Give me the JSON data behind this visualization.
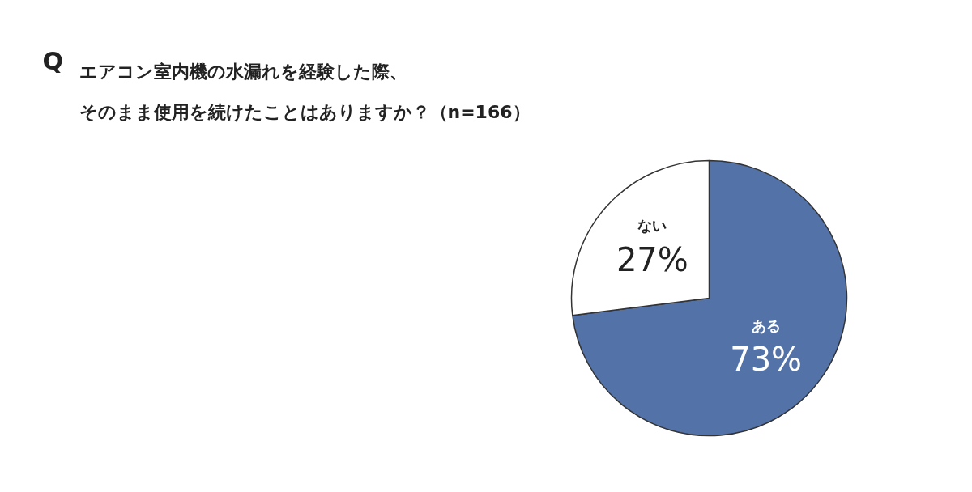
{
  "chart_data": {
    "type": "pie",
    "title": "エアコン室内機の水漏れを経験した際、",
    "subtitle": "そのまま使用を続けたことはありますか？（n=166）",
    "annotations": [
      "Q"
    ],
    "categories": [
      "ある",
      "ない"
    ],
    "values": [
      73,
      27
    ],
    "colors": [
      "#5272a8",
      "#ffffff"
    ],
    "value_labels": [
      "73%",
      "27%"
    ]
  }
}
